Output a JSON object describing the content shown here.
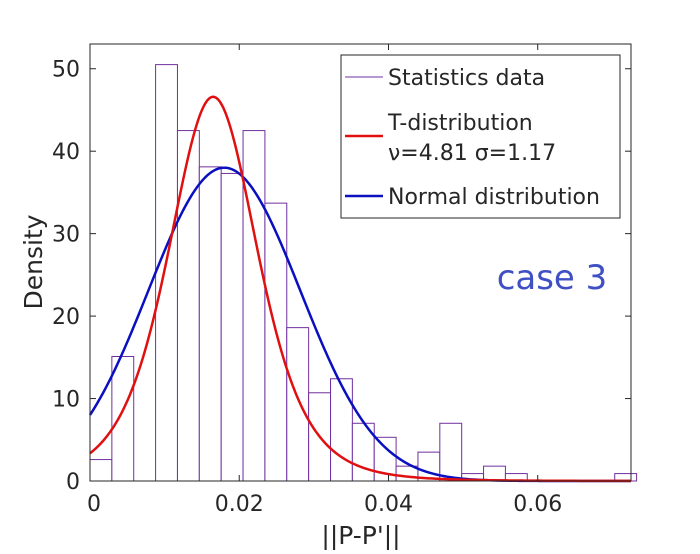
{
  "chart_data": {
    "type": "bar",
    "subtype": "histogram-with-fitted-curves",
    "xlabel": "||P-P'||",
    "ylabel": "Density",
    "xlim": [
      0,
      0.0725
    ],
    "ylim": [
      0,
      53
    ],
    "x_ticks": [
      {
        "value": 0,
        "label": "0"
      },
      {
        "value": 0.02,
        "label": "0.02"
      },
      {
        "value": 0.04,
        "label": "0.04"
      },
      {
        "value": 0.06,
        "label": "0.06"
      }
    ],
    "y_ticks": [
      {
        "value": 0,
        "label": "0"
      },
      {
        "value": 10,
        "label": "10"
      },
      {
        "value": 20,
        "label": "20"
      },
      {
        "value": 30,
        "label": "30"
      },
      {
        "value": 40,
        "label": "40"
      },
      {
        "value": 50,
        "label": "50"
      }
    ],
    "bin_width": 0.00293,
    "bin_start": 0,
    "histogram_values": [
      2.6,
      15.1,
      0,
      50.5,
      42.5,
      38.1,
      37.3,
      42.5,
      33.7,
      18.6,
      10.7,
      12.4,
      7.0,
      5.3,
      1.8,
      3.5,
      7.0,
      0.9,
      1.8,
      0.9,
      0,
      0,
      0,
      0,
      0.9
    ],
    "series": [
      {
        "name": "Statistics data",
        "kind": "histogram",
        "color": "#7030a0"
      },
      {
        "name": "T-distribution",
        "name_line2": "ν=4.81 σ=1.17",
        "kind": "curve",
        "color": "#e01010",
        "peak_x": 0.0165,
        "peak_y": 46.6
      },
      {
        "name": "Normal distribution",
        "kind": "curve",
        "color": "#0a10c0",
        "peak_x": 0.018,
        "peak_y": 38.0
      }
    ],
    "annotation": {
      "text": "case 3",
      "color": "#3f4fc4"
    },
    "legend_position": "top-right",
    "grid": false
  }
}
